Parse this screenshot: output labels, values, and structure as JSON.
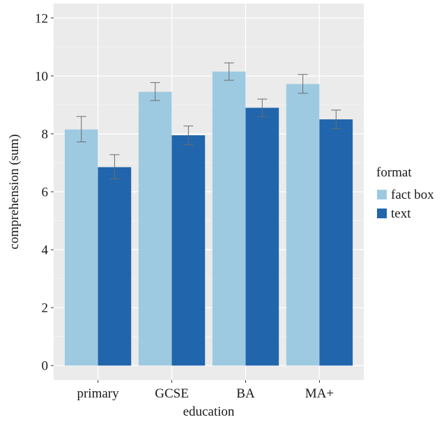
{
  "chart_data": {
    "type": "bar",
    "xlabel": "education",
    "ylabel": "comprehension (sum)",
    "categories": [
      "primary",
      "GCSE",
      "BA",
      "MA+"
    ],
    "ylim": [
      -0.5,
      12.5
    ],
    "yticks": [
      0,
      2,
      4,
      6,
      8,
      10,
      12
    ],
    "grid": true,
    "legend": {
      "title": "format",
      "placement": "right"
    },
    "series": [
      {
        "name": "fact box",
        "color": "#9ecae1",
        "values": [
          8.15,
          9.45,
          10.15,
          9.72
        ],
        "error_low": [
          7.72,
          9.15,
          9.85,
          9.4
        ],
        "error_high": [
          8.6,
          9.77,
          10.45,
          10.05
        ]
      },
      {
        "name": "text",
        "color": "#2166ac",
        "values": [
          6.85,
          7.95,
          8.9,
          8.5
        ],
        "error_low": [
          6.45,
          7.62,
          8.6,
          8.18
        ],
        "error_high": [
          7.28,
          8.27,
          9.2,
          8.82
        ]
      }
    ]
  }
}
